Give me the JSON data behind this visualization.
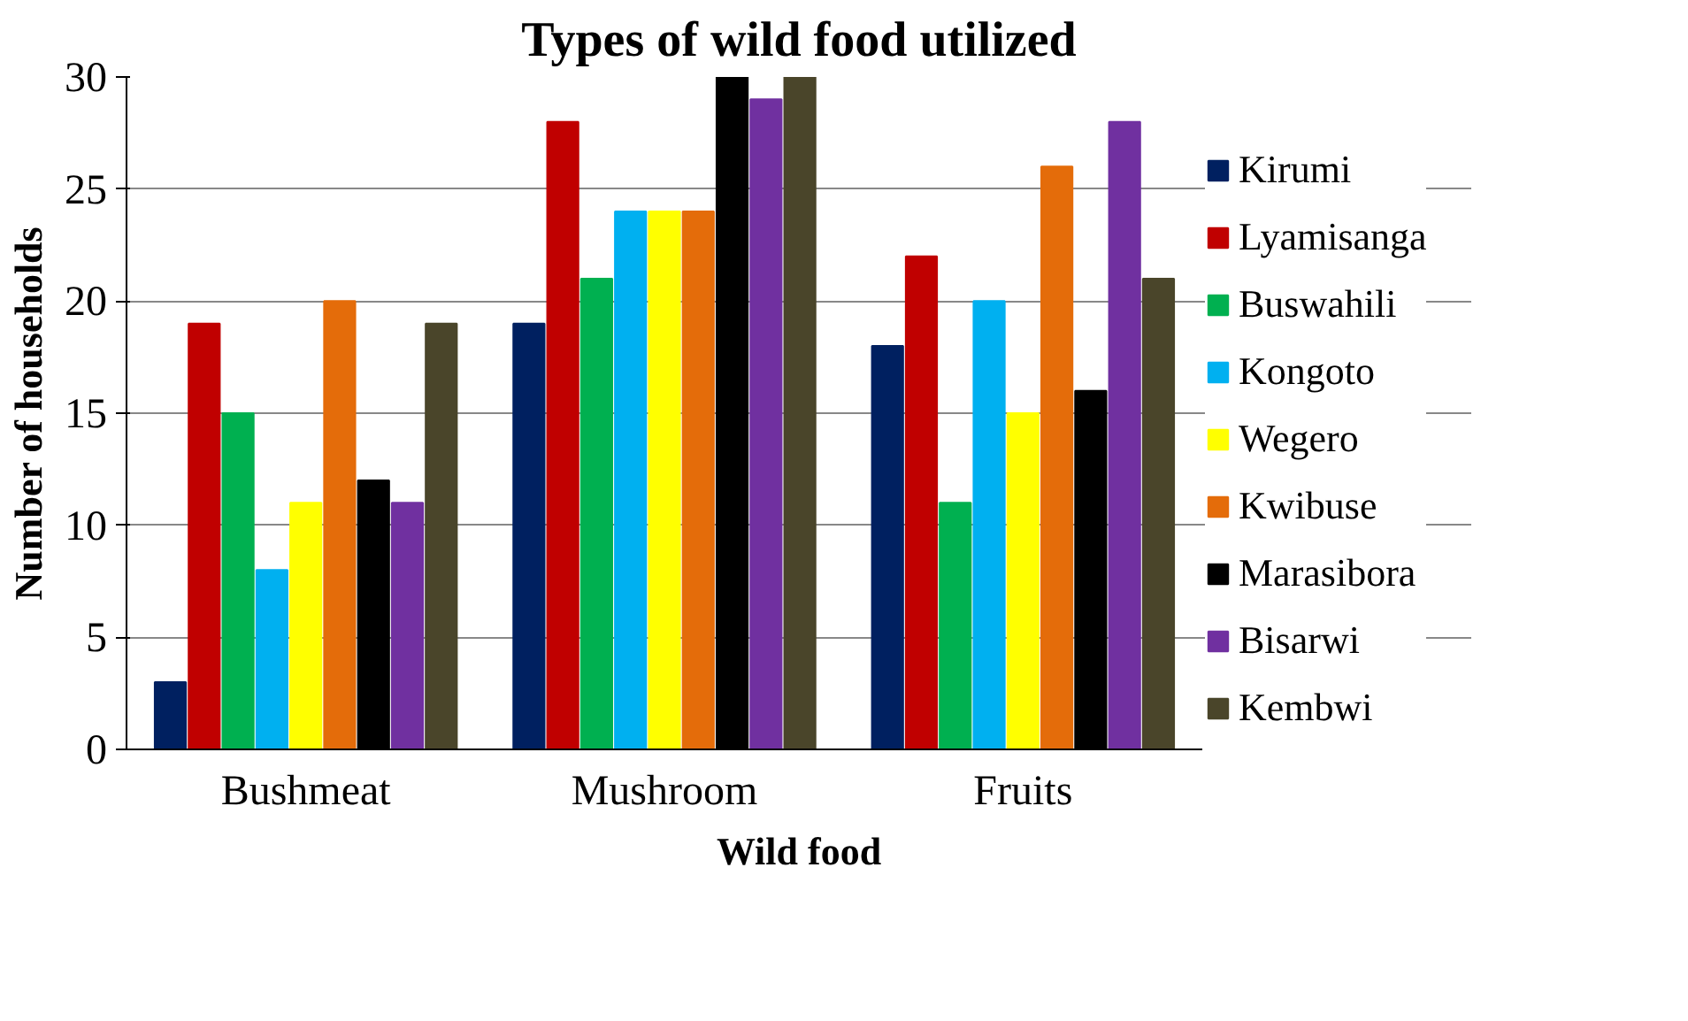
{
  "chart_data": {
    "type": "bar",
    "title": "Types of wild food utilized",
    "xlabel": "Wild food",
    "ylabel": "Number of households",
    "categories": [
      "Bushmeat",
      "Mushroom",
      "Fruits"
    ],
    "series": [
      {
        "name": "Kirumi",
        "color": "#002060",
        "values": [
          3,
          19,
          18
        ]
      },
      {
        "name": "Lyamisanga",
        "color": "#c00000",
        "values": [
          19,
          28,
          22
        ]
      },
      {
        "name": "Buswahili",
        "color": "#00b050",
        "values": [
          15,
          21,
          11
        ]
      },
      {
        "name": "Kongoto",
        "color": "#00b0f0",
        "values": [
          8,
          24,
          20
        ]
      },
      {
        "name": "Wegero",
        "color": "#ffff00",
        "values": [
          11,
          24,
          15
        ]
      },
      {
        "name": "Kwibuse",
        "color": "#e46c0a",
        "values": [
          20,
          24,
          26
        ]
      },
      {
        "name": "Marasibora",
        "color": "#000000",
        "values": [
          12,
          30,
          16
        ]
      },
      {
        "name": "Bisarwi",
        "color": "#7030a0",
        "values": [
          11,
          29,
          28
        ]
      },
      {
        "name": "Kembwi",
        "color": "#4a452a",
        "values": [
          19,
          30,
          21
        ]
      }
    ],
    "ylim": [
      0,
      30
    ],
    "yticks": [
      0,
      5,
      10,
      15,
      20,
      25,
      30
    ],
    "grid": "y",
    "legend": "right"
  }
}
